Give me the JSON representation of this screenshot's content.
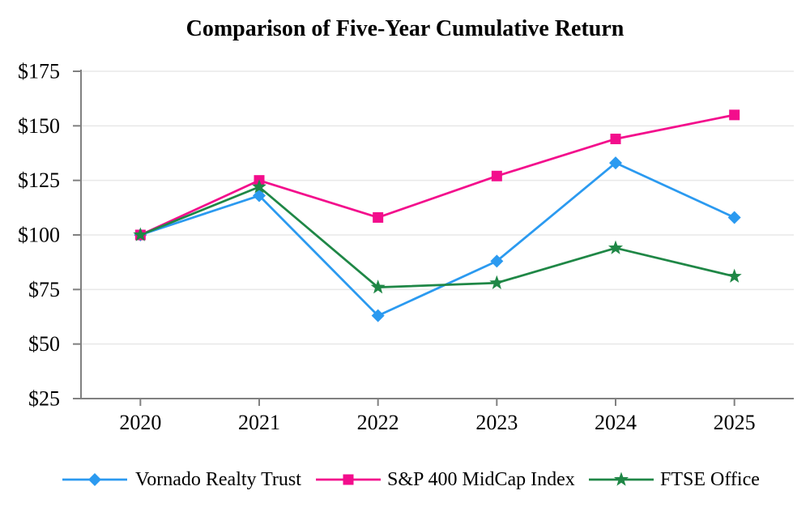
{
  "title": "Comparison of Five-Year Cumulative Return",
  "chart_data": {
    "type": "line",
    "title": "Comparison of Five-Year Cumulative Return",
    "categories": [
      "2020",
      "2021",
      "2022",
      "2023",
      "2024",
      "2025"
    ],
    "series": [
      {
        "name": "Vornado Realty Trust",
        "marker": "diamond",
        "color": "#2B9AF0",
        "values": [
          100,
          118,
          63,
          88,
          133,
          108
        ]
      },
      {
        "name": "S&P 400 MidCap Index",
        "marker": "square",
        "color": "#F30D8C",
        "values": [
          100,
          125,
          108,
          127,
          144,
          155
        ]
      },
      {
        "name": "FTSE Office",
        "marker": "star",
        "color": "#1F8746",
        "values": [
          100,
          122,
          76,
          78,
          94,
          81
        ]
      }
    ],
    "xlabel": "",
    "ylabel": "",
    "ylim": [
      25,
      175
    ],
    "y_ticks": [
      {
        "value": 175,
        "label": "$175"
      },
      {
        "value": 150,
        "label": "$150"
      },
      {
        "value": 125,
        "label": "$125"
      },
      {
        "value": 100,
        "label": "$100"
      },
      {
        "value": 75,
        "label": "$75"
      },
      {
        "value": 50,
        "label": "$50"
      },
      {
        "value": 25,
        "label": "$25"
      }
    ],
    "grid": true,
    "legend_position": "bottom",
    "colors": {
      "axis": "#808080",
      "grid": "#e8e8e8",
      "text": "#000000",
      "background": "#ffffff"
    }
  }
}
